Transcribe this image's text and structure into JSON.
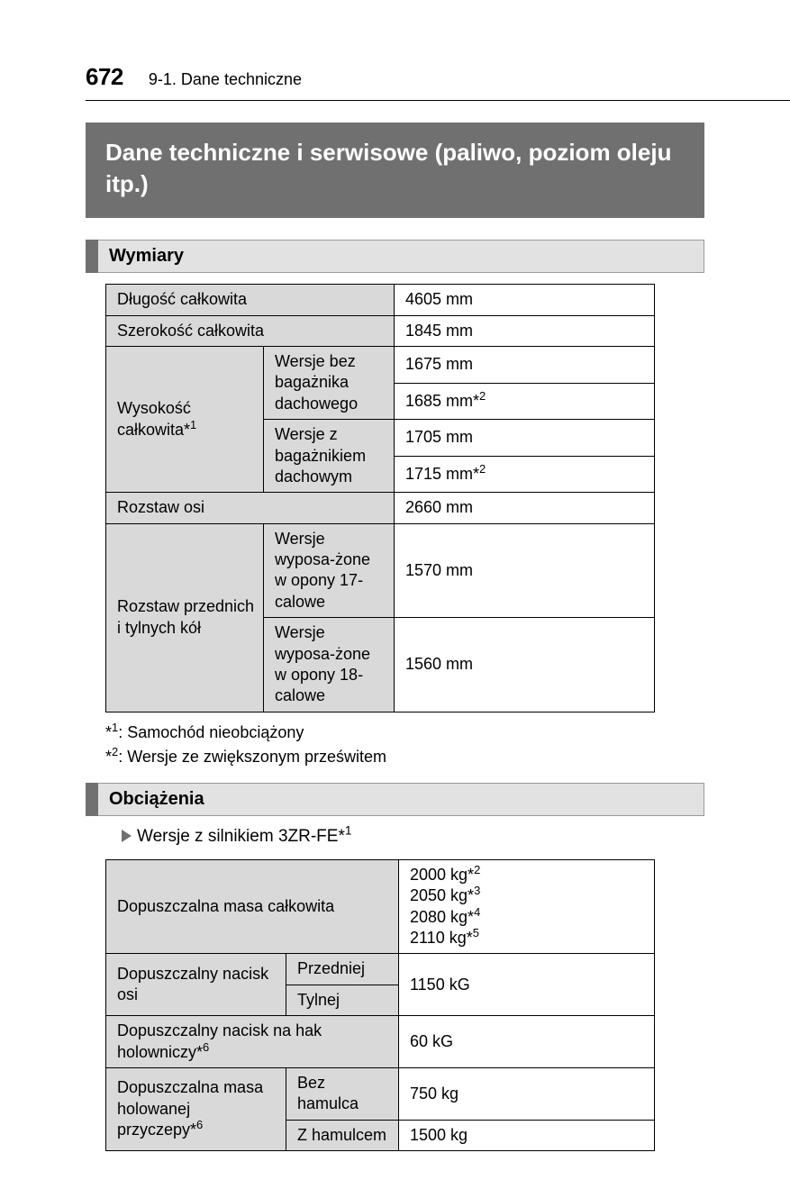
{
  "header": {
    "page_number": "672",
    "section": "9-1. Dane techniczne"
  },
  "title": "Dane techniczne i serwisowe (paliwo, poziom oleju itp.)",
  "sections": {
    "dimensions": {
      "heading": "Wymiary",
      "rows": {
        "length_label": "Długość całkowita",
        "length_value": "4605 mm",
        "width_label": "Szerokość całkowita",
        "width_value": "1845 mm",
        "height_label_pre": "Wysokość całkowita*",
        "height_label_sup": "1",
        "height_noroof_label": "Wersje bez bagażnika dachowego",
        "height_noroof_v1": "1675 mm",
        "height_noroof_v2_pre": "1685 mm*",
        "height_noroof_v2_sup": "2",
        "height_roof_label": "Wersje z bagażnikiem dachowym",
        "height_roof_v1": "1705 mm",
        "height_roof_v2_pre": "1715 mm*",
        "height_roof_v2_sup": "2",
        "wheelbase_label": "Rozstaw osi",
        "wheelbase_value": "2660 mm",
        "track_label": "Rozstaw przednich i tylnych kół",
        "track_17_label": "Wersje wyposa-żone w opony 17-calowe",
        "track_17_value": "1570 mm",
        "track_18_label": "Wersje wyposa-żone w opony 18-calowe",
        "track_18_value": "1560 mm"
      },
      "footnotes": {
        "f1_pre": "*",
        "f1_sup": "1",
        "f1_text": ": Samochód nieobciążony",
        "f2_pre": "*",
        "f2_sup": "2",
        "f2_text": ": Wersje ze zwiększonym prześwitem"
      }
    },
    "loads": {
      "heading": "Obciążenia",
      "version_pre": "Wersje z silnikiem 3ZR-FE*",
      "version_sup": "1",
      "rows": {
        "gvm_label": "Dopuszczalna masa całkowita",
        "gvm_v1_pre": "2000 kg*",
        "gvm_v1_sup": "2",
        "gvm_v2_pre": "2050 kg*",
        "gvm_v2_sup": "3",
        "gvm_v3_pre": "2080 kg*",
        "gvm_v3_sup": "4",
        "gvm_v4_pre": "2110 kg*",
        "gvm_v4_sup": "5",
        "axle_label": "Dopuszczalny nacisk osi",
        "axle_front": "Przedniej",
        "axle_rear": "Tylnej",
        "axle_value": "1150 kG",
        "tow_nose_label_pre": "Dopuszczalny nacisk na hak holowniczy*",
        "tow_nose_label_sup": "6",
        "tow_nose_value": "60 kG",
        "trailer_label_pre": "Dopuszczalna masa holowanej przyczepy*",
        "trailer_label_sup": "6",
        "trailer_unbraked_label": "Bez hamulca",
        "trailer_unbraked_value": "750 kg",
        "trailer_braked_label": "Z hamulcem",
        "trailer_braked_value": "1500 kg"
      }
    }
  }
}
